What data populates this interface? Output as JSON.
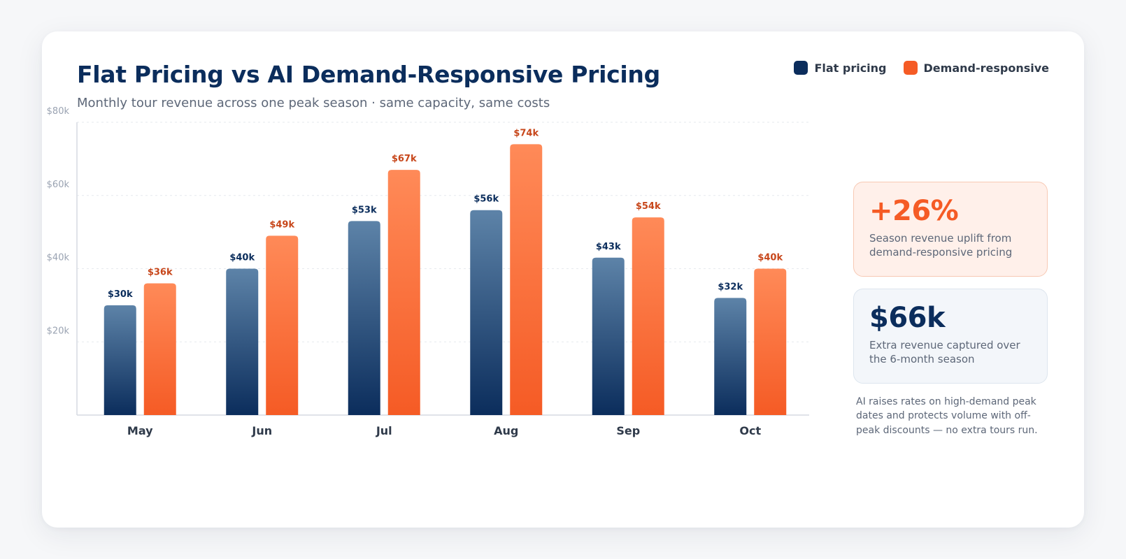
{
  "card": {
    "kpis": [
      {
        "value": "+26%",
        "label": "Season revenue uplift from demand-responsive pricing",
        "accent": "#f55b25"
      },
      {
        "value": "$66k",
        "label": "Extra revenue captured over the 6-month season",
        "accent": "#0b2d5c"
      }
    ],
    "note": "AI raises rates on high-demand peak dates and protects volume with off-peak discounts — no extra tours run."
  },
  "chart_data": {
    "type": "bar",
    "title": "Flat Pricing vs AI Demand-Responsive Pricing",
    "subtitle": "Monthly tour revenue across one peak season · same capacity, same costs",
    "categories": [
      "May",
      "Jun",
      "Jul",
      "Aug",
      "Sep",
      "Oct"
    ],
    "series": [
      {
        "name": "Flat pricing",
        "values": [
          30,
          40,
          53,
          56,
          43,
          32
        ],
        "labels": [
          "$30k",
          "$40k",
          "$53k",
          "$56k",
          "$43k",
          "$32k"
        ],
        "color": "#0b2d5c"
      },
      {
        "name": "Demand-responsive",
        "values": [
          36,
          49,
          67,
          74,
          54,
          40
        ],
        "labels": [
          "$36k",
          "$49k",
          "$67k",
          "$74k",
          "$54k",
          "$40k"
        ],
        "color": "#f55b25"
      }
    ],
    "yticks": [
      20,
      40,
      60,
      80
    ],
    "ytick_labels": [
      "$20k",
      "$40k",
      "$60k",
      "$80k"
    ],
    "ylim": [
      0,
      80
    ],
    "grid": true,
    "legend": "top-right"
  }
}
